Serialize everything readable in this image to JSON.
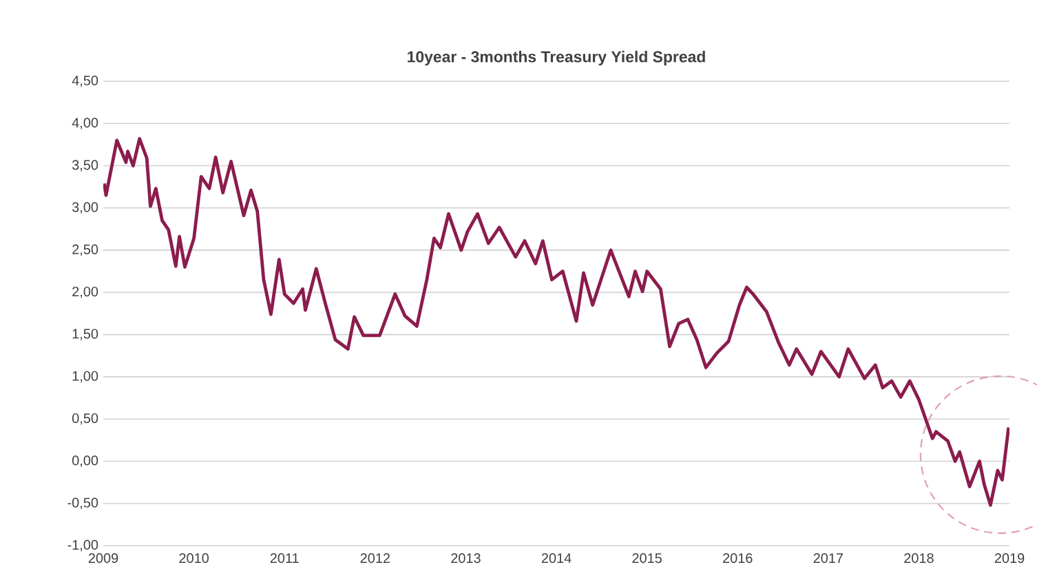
{
  "chart_data": {
    "type": "line",
    "title": "10year - 3months Treasury Yield Spread",
    "xlim": [
      2009,
      2019
    ],
    "xticks": [
      2009,
      2010,
      2011,
      2012,
      2013,
      2014,
      2015,
      2016,
      2017,
      2018,
      2019
    ],
    "ylim": [
      -1,
      4.5
    ],
    "yticks": [
      {
        "value": -1,
        "label": "-1,00"
      },
      {
        "value": -0.5,
        "label": "-0,50"
      },
      {
        "value": 0,
        "label": "0,00"
      },
      {
        "value": 0.5,
        "label": "0,50"
      },
      {
        "value": 1,
        "label": "1,00"
      },
      {
        "value": 1.5,
        "label": "1,50"
      },
      {
        "value": 2,
        "label": "2,00"
      },
      {
        "value": 2.5,
        "label": "2,50"
      },
      {
        "value": 3,
        "label": "3,00"
      },
      {
        "value": 3.5,
        "label": "3,50"
      },
      {
        "value": 4,
        "label": "4,00"
      },
      {
        "value": 4.5,
        "label": "4,50"
      }
    ],
    "grid": "y",
    "series": [
      {
        "color": "#8c1c4e",
        "x": [
          2009.01,
          2009.03,
          2009.15,
          2009.25,
          2009.27,
          2009.33,
          2009.4,
          2009.48,
          2009.52,
          2009.58,
          2009.65,
          2009.72,
          2009.8,
          2009.84,
          2009.9,
          2010.0,
          2010.08,
          2010.17,
          2010.24,
          2010.32,
          2010.41,
          2010.55,
          2010.63,
          2010.7,
          2010.77,
          2010.85,
          2010.94,
          2011.0,
          2011.1,
          2011.2,
          2011.23,
          2011.35,
          2011.45,
          2011.56,
          2011.7,
          2011.77,
          2011.87,
          2012.05,
          2012.22,
          2012.33,
          2012.46,
          2012.57,
          2012.65,
          2012.72,
          2012.81,
          2012.95,
          2013.02,
          2013.13,
          2013.25,
          2013.37,
          2013.55,
          2013.65,
          2013.77,
          2013.85,
          2013.95,
          2014.07,
          2014.22,
          2014.3,
          2014.4,
          2014.6,
          2014.8,
          2014.87,
          2014.95,
          2015.0,
          2015.15,
          2015.25,
          2015.35,
          2015.45,
          2015.55,
          2015.65,
          2015.77,
          2015.9,
          2016.02,
          2016.1,
          2016.17,
          2016.32,
          2016.45,
          2016.57,
          2016.65,
          2016.82,
          2016.92,
          2017.12,
          2017.22,
          2017.4,
          2017.52,
          2017.6,
          2017.7,
          2017.8,
          2017.9,
          2018.0,
          2018.15,
          2018.19,
          2018.32,
          2018.4,
          2018.45,
          2018.56,
          2018.67,
          2018.72,
          2018.79,
          2018.87,
          2018.92,
          2018.99
        ],
        "values": [
          3.29,
          3.15,
          3.8,
          3.54,
          3.67,
          3.5,
          3.82,
          3.59,
          3.02,
          3.23,
          2.85,
          2.74,
          2.31,
          2.66,
          2.3,
          2.64,
          3.37,
          3.23,
          3.6,
          3.18,
          3.55,
          2.91,
          3.21,
          2.96,
          2.15,
          1.74,
          2.39,
          1.98,
          1.87,
          2.04,
          1.79,
          2.28,
          1.87,
          1.44,
          1.33,
          1.71,
          1.49,
          1.49,
          1.98,
          1.72,
          1.6,
          2.15,
          2.64,
          2.53,
          2.93,
          2.5,
          2.72,
          2.93,
          2.58,
          2.77,
          2.42,
          2.61,
          2.34,
          2.61,
          2.15,
          2.25,
          1.66,
          2.23,
          1.85,
          2.5,
          1.95,
          2.25,
          2.01,
          2.25,
          2.04,
          1.36,
          1.63,
          1.68,
          1.44,
          1.11,
          1.28,
          1.42,
          1.85,
          2.06,
          1.98,
          1.77,
          1.41,
          1.14,
          1.33,
          1.03,
          1.3,
          1.0,
          1.33,
          0.98,
          1.14,
          0.87,
          0.95,
          0.76,
          0.95,
          0.73,
          0.27,
          0.35,
          0.24,
          0.0,
          0.11,
          -0.3,
          0.0,
          -0.27,
          -0.52,
          -0.11,
          -0.22,
          0.4
        ]
      }
    ]
  }
}
